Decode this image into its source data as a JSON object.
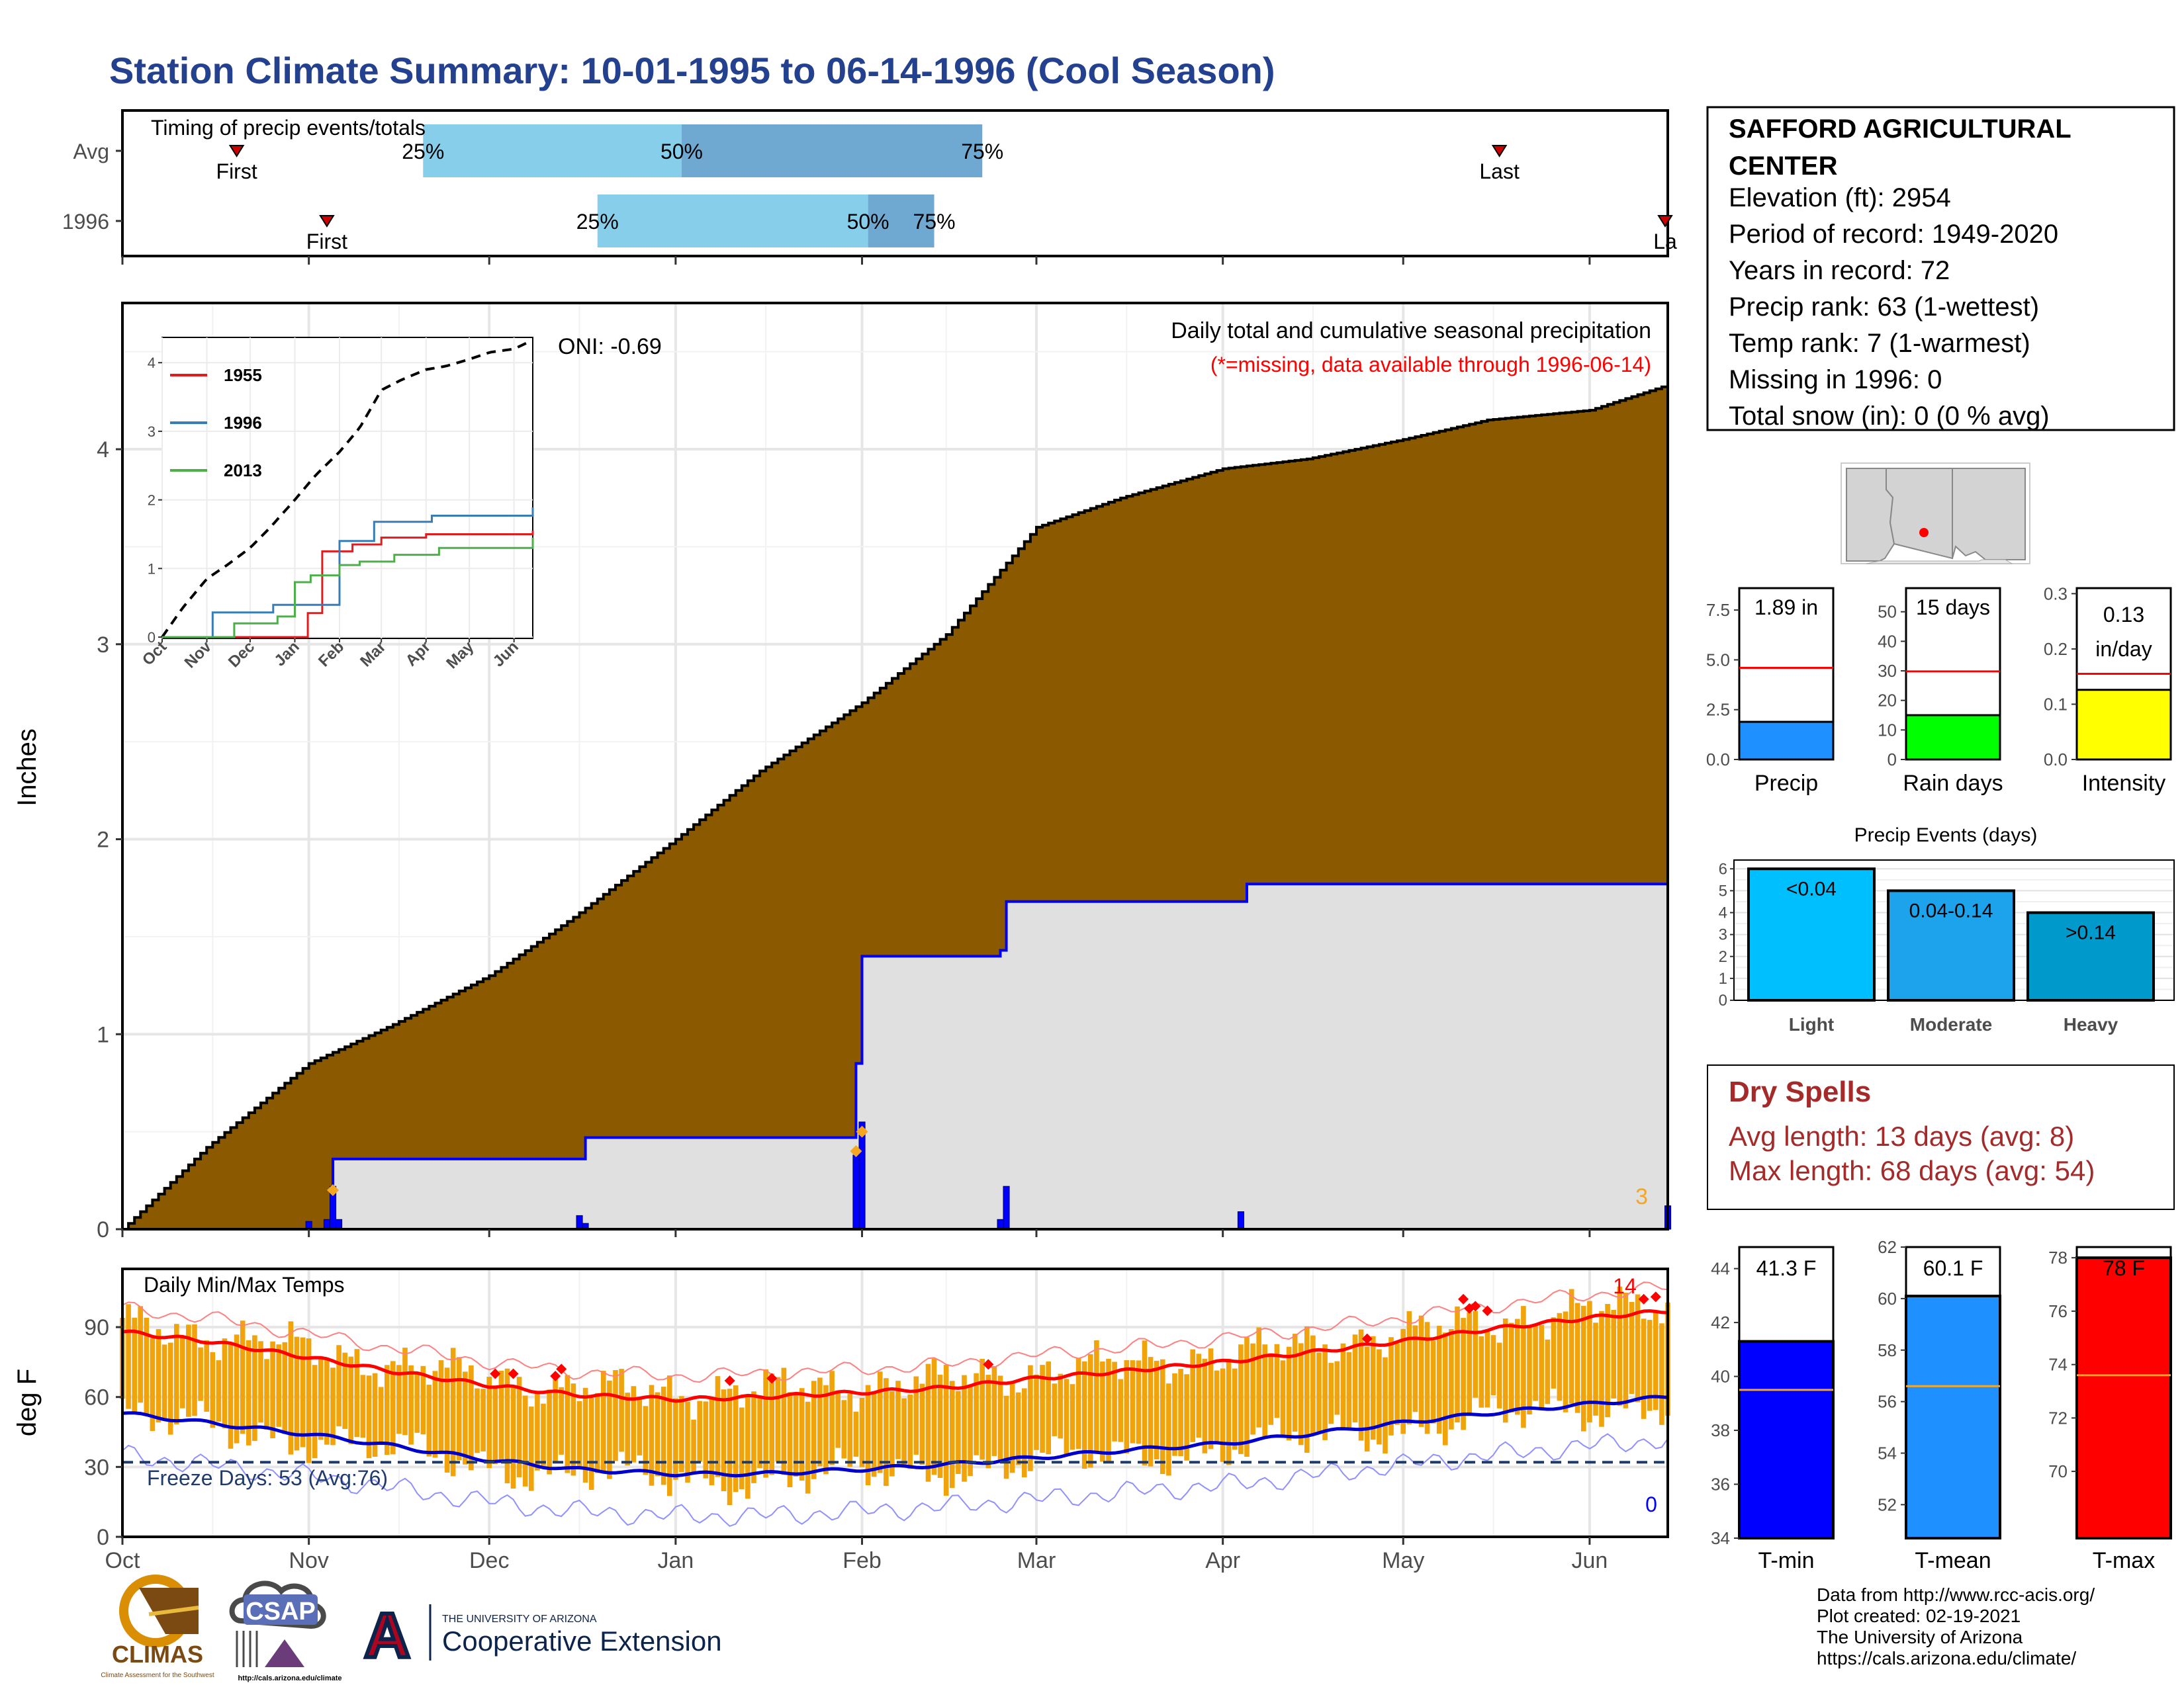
{
  "title": "Station Climate Summary: 10-01-1995 to 06-14-1996 (Cool Season)",
  "colors": {
    "title": "#24418f",
    "brown": "#8b5a00",
    "precip_blue": "#0000ff",
    "grey_fill": "#e0e0e0",
    "iqr_light": "#87ceeb",
    "iqr_dark": "#6fa8d0",
    "orange": "#f0a30a",
    "red": "#ff0000",
    "dry_spell": "#a52a2a",
    "amber": "#f5a623"
  },
  "timing": {
    "title": "Timing of precip events/totals",
    "rows": [
      {
        "label": "Avg",
        "first_label": "First",
        "last_label": "Last",
        "first_date": "1995-10-20",
        "last_date": "1996-05-17",
        "p25_date": "1995-11-20",
        "p50_date": "1996-01-02",
        "p75_date": "1996-02-21",
        "p25_label": "25%",
        "p50_label": "50%",
        "p75_label": "75%"
      },
      {
        "label": "1996",
        "first_label": "First",
        "last_label": "La",
        "first_date": "1995-11-04",
        "last_date": "1996-06-14",
        "p25_date": "1995-12-19",
        "p50_date": "1996-02-02",
        "p75_date": "1996-02-13",
        "p25_label": "25%",
        "p50_label": "50%",
        "p75_label": "75%"
      }
    ]
  },
  "precip_panel": {
    "ylabel": "Inches",
    "oni": "ONI: -0.69",
    "header": "Daily total and cumulative seasonal precipitation",
    "missing_note": "(*=missing, data available through 1996-06-14)",
    "count_label": "3"
  },
  "inset": {
    "series": [
      {
        "name": "1955",
        "color": "#e41a1c"
      },
      {
        "name": "1996",
        "color": "#377eb8"
      },
      {
        "name": "2013",
        "color": "#4daf4a"
      }
    ],
    "x_ticks": [
      "Oct",
      "Nov",
      "Dec",
      "Jan",
      "Feb",
      "Mar",
      "Apr",
      "May",
      "Jun"
    ],
    "y_ticks": [
      "0",
      "1",
      "2",
      "3",
      "4"
    ]
  },
  "temp_panel": {
    "title": "Daily Min/Max Temps",
    "ylabel": "deg F",
    "freeze": "Freeze Days: 53 (Avg:76)",
    "hot_count": "14",
    "cold_count": "0"
  },
  "x_month_labels": [
    "Oct",
    "Nov",
    "Dec",
    "Jan",
    "Feb",
    "Mar",
    "Apr",
    "May",
    "Jun"
  ],
  "station": {
    "name_line1": "SAFFORD AGRICULTURAL",
    "name_line2": "CENTER",
    "lines": [
      "Elevation (ft): 2954",
      "Period of record: 1949-2020",
      "Years in record: 72",
      "Precip rank: 63 (1-wettest)",
      "Temp rank: 7 (1-warmest)",
      "Missing in 1996: 0",
      "Total snow (in): 0 (0 % avg)"
    ]
  },
  "summary_bars": [
    {
      "label": "Precip",
      "value_text": "1.89 in",
      "value": 1.89,
      "avg": 4.6,
      "ymax": 8.6,
      "ticks": [
        "0.0",
        "2.5",
        "5.0",
        "7.5"
      ],
      "tick_values": [
        0,
        2.5,
        5.0,
        7.5
      ],
      "color": "#1e90ff"
    },
    {
      "label": "Rain days",
      "value_text": "15 days",
      "value": 15,
      "avg": 29.8,
      "ymax": 58,
      "ticks": [
        "0",
        "10",
        "20",
        "30",
        "40",
        "50"
      ],
      "tick_values": [
        0,
        10,
        20,
        30,
        40,
        50
      ],
      "color": "#00ff00"
    },
    {
      "label": "Intensity",
      "value_text_1": "0.13",
      "value_text_2": "in/day",
      "value": 0.126,
      "avg": 0.155,
      "ymax": 0.31,
      "ticks": [
        "0.0",
        "0.1",
        "0.2",
        "0.3"
      ],
      "tick_values": [
        0,
        0.1,
        0.2,
        0.3
      ],
      "color": "#ffff00"
    }
  ],
  "precip_events": {
    "title": "Precip Events (days)",
    "bars": [
      {
        "category": "Light",
        "label": "<0.04",
        "value": 6,
        "color": "#00bfff"
      },
      {
        "category": "Moderate",
        "label": "0.04-0.14",
        "value": 5,
        "color": "#1ca3ec"
      },
      {
        "category": "Heavy",
        "label": ">0.14",
        "value": 4,
        "color": "#0099cc"
      }
    ],
    "y_ticks": [
      "0",
      "1",
      "2",
      "3",
      "4",
      "5",
      "6"
    ]
  },
  "dry_spells": {
    "title": "Dry Spells",
    "line1": "Avg length: 13 days (avg: 8)",
    "line2": "Max length: 68 days (avg: 54)"
  },
  "temp_bars": [
    {
      "label": "T-min",
      "value_text": "41.3 F",
      "value": 41.3,
      "avg": 39.5,
      "ymin": 34,
      "ymax": 44.8,
      "ticks": [
        "34",
        "36",
        "38",
        "40",
        "42",
        "44"
      ],
      "tick_values": [
        34,
        36,
        38,
        40,
        42,
        44
      ],
      "color": "#0000ff"
    },
    {
      "label": "T-mean",
      "value_text": "60.1 F",
      "value": 60.1,
      "avg": 56.6,
      "ymin": 50.7,
      "ymax": 62.0,
      "ticks": [
        "52",
        "54",
        "56",
        "58",
        "60",
        "62"
      ],
      "tick_values": [
        52,
        54,
        56,
        58,
        60,
        62
      ],
      "color": "#1e90ff"
    },
    {
      "label": "T-max",
      "value_text": "78 F",
      "value": 78.0,
      "avg": 73.6,
      "ymin": 67.5,
      "ymax": 78.4,
      "ticks": [
        "70",
        "72",
        "74",
        "76",
        "78"
      ],
      "tick_values": [
        70,
        72,
        74,
        76,
        78
      ],
      "color": "#ff0000"
    }
  ],
  "credits": [
    "Data from http://www.rcc-acis.org/",
    "Plot created: 02-19-2021",
    "The University of Arizona",
    "https://cals.arizona.edu/climate/"
  ],
  "logos": {
    "climas": "CLIMAS",
    "climas_sub": "Climate Assessment for the Southwest",
    "csap": "CSAP",
    "csap_url": "http://cals.arizona.edu/climate",
    "ua_line1": "THE UNIVERSITY OF ARIZONA",
    "ua_line2": "Cooperative Extension",
    "ua_letter": "A"
  },
  "chart_data": [
    {
      "type": "line",
      "title": "Daily total and cumulative seasonal precipitation",
      "ylabel": "Inches",
      "ylim": [
        0,
        4.75
      ],
      "x_range": [
        "1995-10-01",
        "1996-06-14"
      ],
      "series": [
        {
          "name": "Average cumulative precip",
          "dates": [
            "1995-10-01",
            "1995-10-15",
            "1995-11-01",
            "1995-11-15",
            "1995-12-01",
            "1995-12-15",
            "1996-01-01",
            "1996-01-15",
            "1996-02-01",
            "1996-02-15",
            "1996-03-01",
            "1996-03-15",
            "1996-04-01",
            "1996-04-15",
            "1996-05-01",
            "1996-05-15",
            "1996-06-01",
            "1996-06-14"
          ],
          "values": [
            0.0,
            0.42,
            0.85,
            1.05,
            1.3,
            1.6,
            2.0,
            2.35,
            2.7,
            3.05,
            3.6,
            3.75,
            3.9,
            3.95,
            4.05,
            4.15,
            4.2,
            4.33
          ]
        },
        {
          "name": "1996 cumulative precip",
          "dates": [
            "1995-10-01",
            "1995-11-04",
            "1995-11-05",
            "1995-12-16",
            "1995-12-17",
            "1996-01-30",
            "1996-01-31",
            "1996-02-01",
            "1996-02-24",
            "1996-02-25",
            "1996-04-04",
            "1996-04-05",
            "1996-06-13",
            "1996-06-14"
          ],
          "values": [
            0.0,
            0.0,
            0.36,
            0.36,
            0.47,
            0.47,
            0.85,
            1.4,
            1.43,
            1.68,
            1.68,
            1.77,
            1.77,
            1.89
          ]
        },
        {
          "name": "1996 daily precip",
          "dates": [
            "1995-11-01",
            "1995-11-04",
            "1995-11-05",
            "1995-11-06",
            "1995-12-16",
            "1995-12-17",
            "1996-01-31",
            "1996-02-01",
            "1996-02-24",
            "1996-02-25",
            "1996-04-04",
            "1996-06-14"
          ],
          "values": [
            0.04,
            0.05,
            0.22,
            0.05,
            0.07,
            0.03,
            0.38,
            0.55,
            0.05,
            0.22,
            0.09,
            0.12
          ]
        }
      ]
    },
    {
      "type": "line",
      "title": "Daily Min/Max Temps",
      "ylabel": "deg F",
      "ylim": [
        0,
        115
      ],
      "x_range": [
        "1995-10-01",
        "1996-06-14"
      ],
      "series": [
        {
          "name": "Average Tmax",
          "dates": [
            "1995-10-01",
            "1995-10-15",
            "1995-11-01",
            "1995-11-15",
            "1995-12-01",
            "1995-12-15",
            "1996-01-01",
            "1996-01-15",
            "1996-02-01",
            "1996-02-15",
            "1996-03-01",
            "1996-03-15",
            "1996-04-01",
            "1996-04-15",
            "1996-05-01",
            "1996-05-15",
            "1996-06-01",
            "1996-06-14"
          ],
          "values": [
            88,
            84,
            77,
            71,
            65,
            61,
            59,
            60,
            62,
            64,
            68,
            71,
            75,
            79,
            84,
            89,
            94,
            97
          ]
        },
        {
          "name": "Average Tmin",
          "dates": [
            "1995-10-01",
            "1995-10-15",
            "1995-11-01",
            "1995-11-15",
            "1995-12-01",
            "1995-12-15",
            "1996-01-01",
            "1996-01-15",
            "1996-02-01",
            "1996-02-15",
            "1996-03-01",
            "1996-03-15",
            "1996-04-01",
            "1996-04-15",
            "1996-05-01",
            "1996-05-15",
            "1996-06-01",
            "1996-06-14"
          ],
          "values": [
            53,
            49,
            44,
            39,
            33,
            29,
            27,
            27,
            29,
            31,
            34,
            37,
            40,
            44,
            49,
            53,
            57,
            60
          ]
        },
        {
          "name": "Freeze threshold",
          "values": [
            32
          ]
        }
      ]
    },
    {
      "type": "bar",
      "title": "Precip Events (days)",
      "categories": [
        "Light",
        "Moderate",
        "Heavy"
      ],
      "values": [
        6,
        5,
        4
      ]
    }
  ]
}
